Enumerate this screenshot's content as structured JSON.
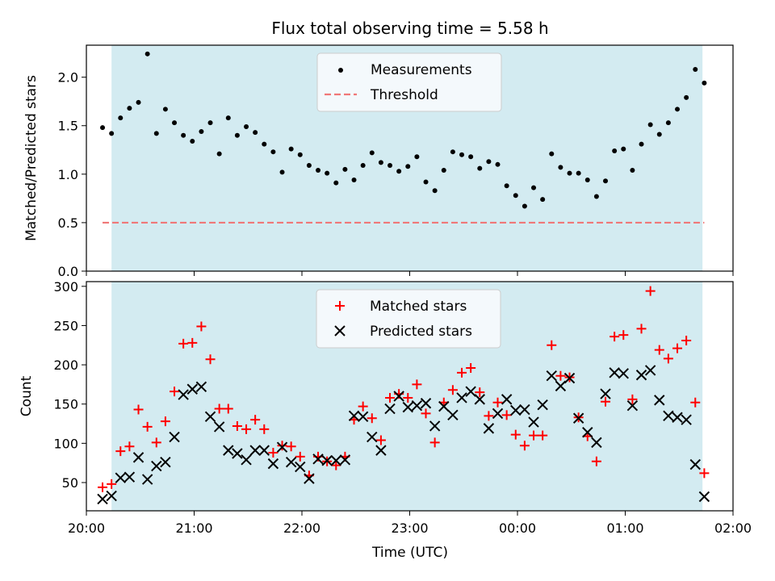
{
  "chart_data": [
    {
      "type": "scatter",
      "title": "Flux total observing time = 5.58 h",
      "xlabel": "",
      "ylabel": "Matched/Predicted stars",
      "x_unit": "time (UTC)",
      "xlim": [
        "20:00",
        "02:00"
      ],
      "ylim": [
        0,
        2.33
      ],
      "yticks": [
        "0.0",
        "0.5",
        "1.0",
        "1.5",
        "2.0"
      ],
      "shaded_span": [
        "20:14",
        "25:43"
      ],
      "shade_color": "#d3ebf1",
      "legend_location": "upper center",
      "series": [
        {
          "name": "Measurements",
          "marker": "dot",
          "color": "#000000",
          "points": [
            [
              "20:09",
              1.48
            ],
            [
              "20:14",
              1.42
            ],
            [
              "20:19",
              1.58
            ],
            [
              "20:24",
              1.68
            ],
            [
              "20:29",
              1.74
            ],
            [
              "20:34",
              2.24
            ],
            [
              "20:39",
              1.42
            ],
            [
              "20:44",
              1.67
            ],
            [
              "20:49",
              1.53
            ],
            [
              "20:54",
              1.4
            ],
            [
              "20:59",
              1.34
            ],
            [
              "21:04",
              1.44
            ],
            [
              "21:09",
              1.53
            ],
            [
              "21:14",
              1.21
            ],
            [
              "21:19",
              1.58
            ],
            [
              "21:24",
              1.4
            ],
            [
              "21:29",
              1.49
            ],
            [
              "21:34",
              1.43
            ],
            [
              "21:39",
              1.31
            ],
            [
              "21:44",
              1.23
            ],
            [
              "21:49",
              1.02
            ],
            [
              "21:54",
              1.26
            ],
            [
              "21:59",
              1.2
            ],
            [
              "22:04",
              1.09
            ],
            [
              "22:09",
              1.04
            ],
            [
              "22:14",
              1.01
            ],
            [
              "22:19",
              0.91
            ],
            [
              "22:24",
              1.05
            ],
            [
              "22:29",
              0.94
            ],
            [
              "22:34",
              1.09
            ],
            [
              "22:39",
              1.22
            ],
            [
              "22:44",
              1.12
            ],
            [
              "22:49",
              1.09
            ],
            [
              "22:54",
              1.03
            ],
            [
              "22:59",
              1.08
            ],
            [
              "23:04",
              1.18
            ],
            [
              "23:09",
              0.92
            ],
            [
              "23:14",
              0.83
            ],
            [
              "23:19",
              1.04
            ],
            [
              "23:24",
              1.23
            ],
            [
              "23:29",
              1.2
            ],
            [
              "23:34",
              1.18
            ],
            [
              "23:39",
              1.06
            ],
            [
              "23:44",
              1.13
            ],
            [
              "23:49",
              1.1
            ],
            [
              "23:54",
              0.88
            ],
            [
              "23:59",
              0.78
            ],
            [
              "24:04",
              0.67
            ],
            [
              "24:09",
              0.86
            ],
            [
              "24:14",
              0.74
            ],
            [
              "24:19",
              1.21
            ],
            [
              "24:24",
              1.07
            ],
            [
              "24:29",
              1.01
            ],
            [
              "24:34",
              1.01
            ],
            [
              "24:39",
              0.94
            ],
            [
              "24:44",
              0.77
            ],
            [
              "24:49",
              0.93
            ],
            [
              "24:54",
              1.24
            ],
            [
              "24:59",
              1.26
            ],
            [
              "25:04",
              1.04
            ],
            [
              "25:09",
              1.31
            ],
            [
              "25:14",
              1.51
            ],
            [
              "25:19",
              1.41
            ],
            [
              "25:24",
              1.53
            ],
            [
              "25:29",
              1.67
            ],
            [
              "25:34",
              1.79
            ],
            [
              "25:39",
              2.08
            ],
            [
              "25:44",
              1.94
            ]
          ]
        },
        {
          "name": "Threshold",
          "type": "line",
          "style": "dashed",
          "color": "#f07878",
          "y": 0.5,
          "x": [
            "20:09",
            "25:44"
          ]
        }
      ]
    },
    {
      "type": "scatter",
      "title": "",
      "xlabel": "Time (UTC)",
      "ylabel": "Count",
      "x_unit": "time (UTC)",
      "xlim": [
        "20:00",
        "02:00"
      ],
      "ylim": [
        14,
        306
      ],
      "yticks": [
        "50",
        "100",
        "150",
        "200",
        "250",
        "300"
      ],
      "xticks": [
        "20:00",
        "21:00",
        "22:00",
        "23:00",
        "00:00",
        "01:00",
        "02:00"
      ],
      "shaded_span": [
        "20:14",
        "25:43"
      ],
      "shade_color": "#d3ebf1",
      "legend_location": "upper center",
      "series": [
        {
          "name": "Matched stars",
          "marker": "plus",
          "color": "#ff0000",
          "points": [
            [
              "20:09",
              44
            ],
            [
              "20:14",
              48
            ],
            [
              "20:19",
              90
            ],
            [
              "20:24",
              96
            ],
            [
              "20:29",
              143
            ],
            [
              "20:34",
              121
            ],
            [
              "20:39",
              101
            ],
            [
              "20:44",
              128
            ],
            [
              "20:49",
              166
            ],
            [
              "20:54",
              227
            ],
            [
              "20:59",
              228
            ],
            [
              "21:04",
              249
            ],
            [
              "21:09",
              207
            ],
            [
              "21:14",
              144
            ],
            [
              "21:19",
              144
            ],
            [
              "21:24",
              122
            ],
            [
              "21:29",
              118
            ],
            [
              "21:34",
              130
            ],
            [
              "21:39",
              118
            ],
            [
              "21:44",
              88
            ],
            [
              "21:49",
              97
            ],
            [
              "21:54",
              96
            ],
            [
              "21:59",
              83
            ],
            [
              "22:04",
              59
            ],
            [
              "22:09",
              83
            ],
            [
              "22:14",
              77
            ],
            [
              "22:19",
              72
            ],
            [
              "22:24",
              83
            ],
            [
              "22:29",
              130
            ],
            [
              "22:34",
              147
            ],
            [
              "22:39",
              132
            ],
            [
              "22:44",
              104
            ],
            [
              "22:49",
              158
            ],
            [
              "22:54",
              163
            ],
            [
              "22:59",
              158
            ],
            [
              "23:04",
              175
            ],
            [
              "23:09",
              138
            ],
            [
              "23:14",
              101
            ],
            [
              "23:19",
              152
            ],
            [
              "23:24",
              168
            ],
            [
              "23:29",
              190
            ],
            [
              "23:34",
              196
            ],
            [
              "23:39",
              165
            ],
            [
              "23:44",
              135
            ],
            [
              "23:49",
              152
            ],
            [
              "23:54",
              136
            ],
            [
              "23:59",
              111
            ],
            [
              "24:04",
              97
            ],
            [
              "24:09",
              110
            ],
            [
              "24:14",
              110
            ],
            [
              "24:19",
              225
            ],
            [
              "24:24",
              186
            ],
            [
              "24:29",
              184
            ],
            [
              "24:34",
              133
            ],
            [
              "24:39",
              109
            ],
            [
              "24:44",
              77
            ],
            [
              "24:49",
              153
            ],
            [
              "24:54",
              236
            ],
            [
              "24:59",
              238
            ],
            [
              "25:04",
              156
            ],
            [
              "25:09",
              246
            ],
            [
              "25:14",
              294
            ],
            [
              "25:19",
              219
            ],
            [
              "25:24",
              208
            ],
            [
              "25:29",
              221
            ],
            [
              "25:34",
              231
            ],
            [
              "25:39",
              152
            ],
            [
              "25:44",
              62
            ]
          ]
        },
        {
          "name": "Predicted stars",
          "marker": "x",
          "color": "#000000",
          "points": [
            [
              "20:09",
              29
            ],
            [
              "20:14",
              33
            ],
            [
              "20:19",
              56
            ],
            [
              "20:24",
              57
            ],
            [
              "20:29",
              82
            ],
            [
              "20:34",
              54
            ],
            [
              "20:39",
              71
            ],
            [
              "20:44",
              76
            ],
            [
              "20:49",
              108
            ],
            [
              "20:54",
              162
            ],
            [
              "20:59",
              169
            ],
            [
              "21:04",
              172
            ],
            [
              "21:09",
              134
            ],
            [
              "21:14",
              121
            ],
            [
              "21:19",
              91
            ],
            [
              "21:24",
              87
            ],
            [
              "21:29",
              79
            ],
            [
              "21:34",
              91
            ],
            [
              "21:39",
              91
            ],
            [
              "21:44",
              74
            ],
            [
              "21:49",
              95
            ],
            [
              "21:54",
              76
            ],
            [
              "21:59",
              70
            ],
            [
              "22:04",
              55
            ],
            [
              "22:09",
              80
            ],
            [
              "22:14",
              78
            ],
            [
              "22:19",
              78
            ],
            [
              "22:24",
              79
            ],
            [
              "22:29",
              135
            ],
            [
              "22:34",
              134
            ],
            [
              "22:39",
              108
            ],
            [
              "22:44",
              91
            ],
            [
              "22:49",
              144
            ],
            [
              "22:54",
              160
            ],
            [
              "22:59",
              146
            ],
            [
              "23:04",
              148
            ],
            [
              "23:09",
              151
            ],
            [
              "23:14",
              122
            ],
            [
              "23:19",
              147
            ],
            [
              "23:24",
              136
            ],
            [
              "23:29",
              158
            ],
            [
              "23:34",
              166
            ],
            [
              "23:39",
              156
            ],
            [
              "23:44",
              119
            ],
            [
              "23:49",
              138
            ],
            [
              "23:54",
              156
            ],
            [
              "23:59",
              142
            ],
            [
              "24:04",
              143
            ],
            [
              "24:09",
              127
            ],
            [
              "24:14",
              149
            ],
            [
              "24:19",
              186
            ],
            [
              "24:24",
              173
            ],
            [
              "24:29",
              183
            ],
            [
              "24:34",
              132
            ],
            [
              "24:39",
              114
            ],
            [
              "24:44",
              101
            ],
            [
              "24:49",
              163
            ],
            [
              "24:54",
              190
            ],
            [
              "24:59",
              189
            ],
            [
              "25:04",
              148
            ],
            [
              "25:09",
              187
            ],
            [
              "25:14",
              193
            ],
            [
              "25:19",
              155
            ],
            [
              "25:24",
              135
            ],
            [
              "25:29",
              133
            ],
            [
              "25:34",
              130
            ],
            [
              "25:39",
              73
            ],
            [
              "25:44",
              32
            ]
          ]
        }
      ]
    }
  ]
}
